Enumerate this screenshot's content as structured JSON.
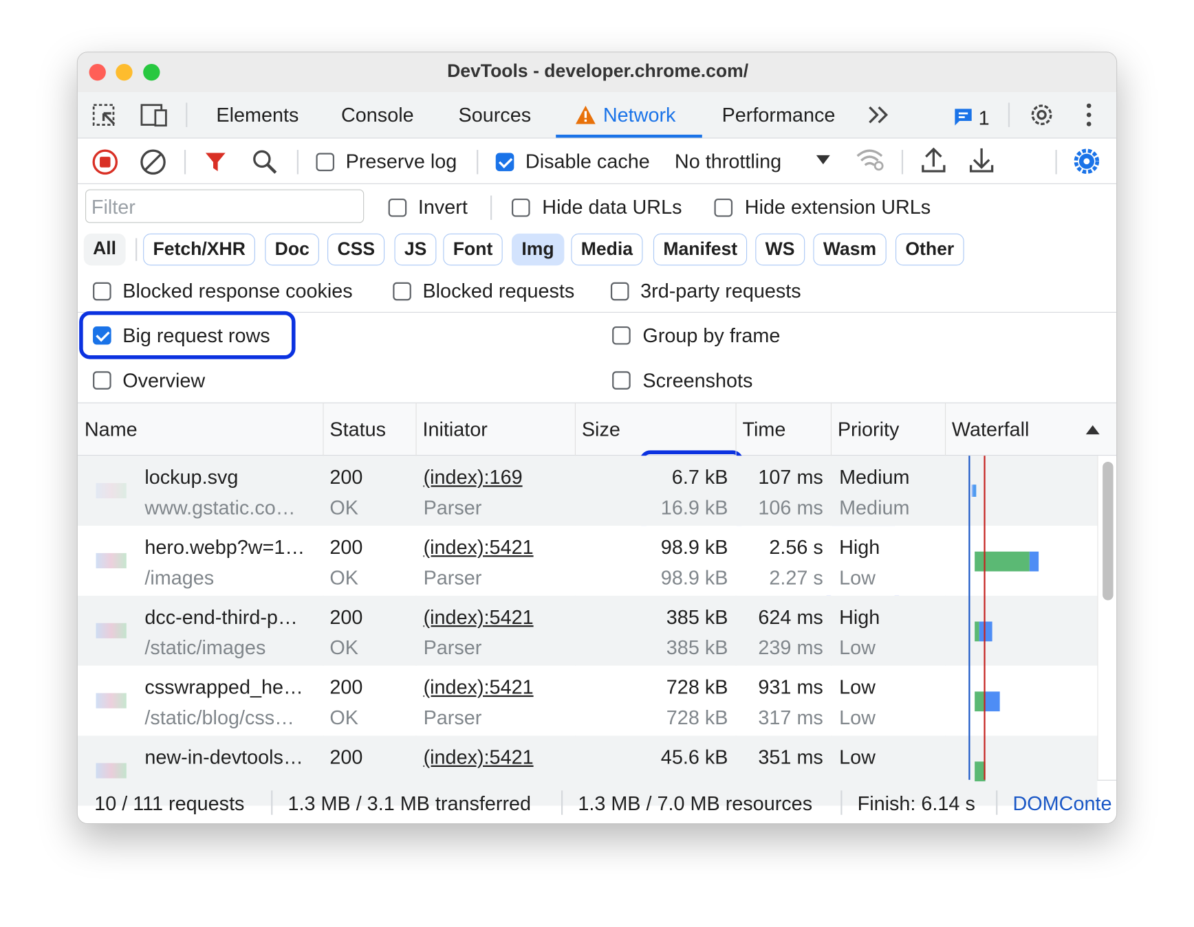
{
  "window": {
    "title": "DevTools - developer.chrome.com/"
  },
  "tabs": [
    "Elements",
    "Console",
    "Sources",
    "Network",
    "Performance"
  ],
  "issues_count": 1,
  "toolbar": {
    "preserve_log": "Preserve log",
    "disable_cache": "Disable cache",
    "throttling": "No throttling"
  },
  "filter": {
    "placeholder": "Filter",
    "invert": "Invert",
    "hide_data_urls": "Hide data URLs",
    "hide_extension_urls": "Hide extension URLs"
  },
  "type_filters": [
    "All",
    "Fetch/XHR",
    "Doc",
    "CSS",
    "JS",
    "Font",
    "Img",
    "Media",
    "Manifest",
    "WS",
    "Wasm",
    "Other"
  ],
  "options": {
    "blocked_response_cookies": "Blocked response cookies",
    "blocked_requests": "Blocked requests",
    "third_party_requests": "3rd-party requests",
    "big_request_rows": "Big request rows",
    "group_by_frame": "Group by frame",
    "overview": "Overview",
    "screenshots": "Screenshots"
  },
  "table": {
    "columns": [
      "Name",
      "Status",
      "Initiator",
      "Size",
      "Time",
      "Priority",
      "Waterfall"
    ],
    "rows": [
      {
        "name": "lockup.svg",
        "path": "www.gstatic.co…",
        "status": 200,
        "status_text": "OK",
        "initiator": "(index):169",
        "initiator_type": "Parser",
        "size": "6.7 kB",
        "resource_size": "16.9 kB",
        "time": "107 ms",
        "latency": "106 ms",
        "priority": "Medium",
        "initial_priority": "Medium"
      },
      {
        "name": "hero.webp?w=1…",
        "path": "/images",
        "status": 200,
        "status_text": "OK",
        "initiator": "(index):5421",
        "initiator_type": "Parser",
        "size": "98.9 kB",
        "resource_size": "98.9 kB",
        "time": "2.56 s",
        "latency": "2.27 s",
        "priority": "High",
        "initial_priority": "Low"
      },
      {
        "name": "dcc-end-third-p…",
        "path": "/static/images",
        "status": 200,
        "status_text": "OK",
        "initiator": "(index):5421",
        "initiator_type": "Parser",
        "size": "385 kB",
        "resource_size": "385 kB",
        "time": "624 ms",
        "latency": "239 ms",
        "priority": "High",
        "initial_priority": "Low"
      },
      {
        "name": "csswrapped_he…",
        "path": "/static/blog/css…",
        "status": 200,
        "status_text": "OK",
        "initiator": "(index):5421",
        "initiator_type": "Parser",
        "size": "728 kB",
        "resource_size": "728 kB",
        "time": "931 ms",
        "latency": "317 ms",
        "priority": "Low",
        "initial_priority": "Low"
      },
      {
        "name": "new-in-devtools…",
        "status": 200,
        "initiator": "(index):5421",
        "size": "45.6 kB",
        "time": "351 ms",
        "priority": "Low"
      }
    ]
  },
  "status_bar": [
    "10 / 111 requests",
    "1.3 MB / 3.1 MB transferred",
    "1.3 MB / 7.0 MB resources",
    "Finish: 6.14 s",
    "DOMConte"
  ]
}
